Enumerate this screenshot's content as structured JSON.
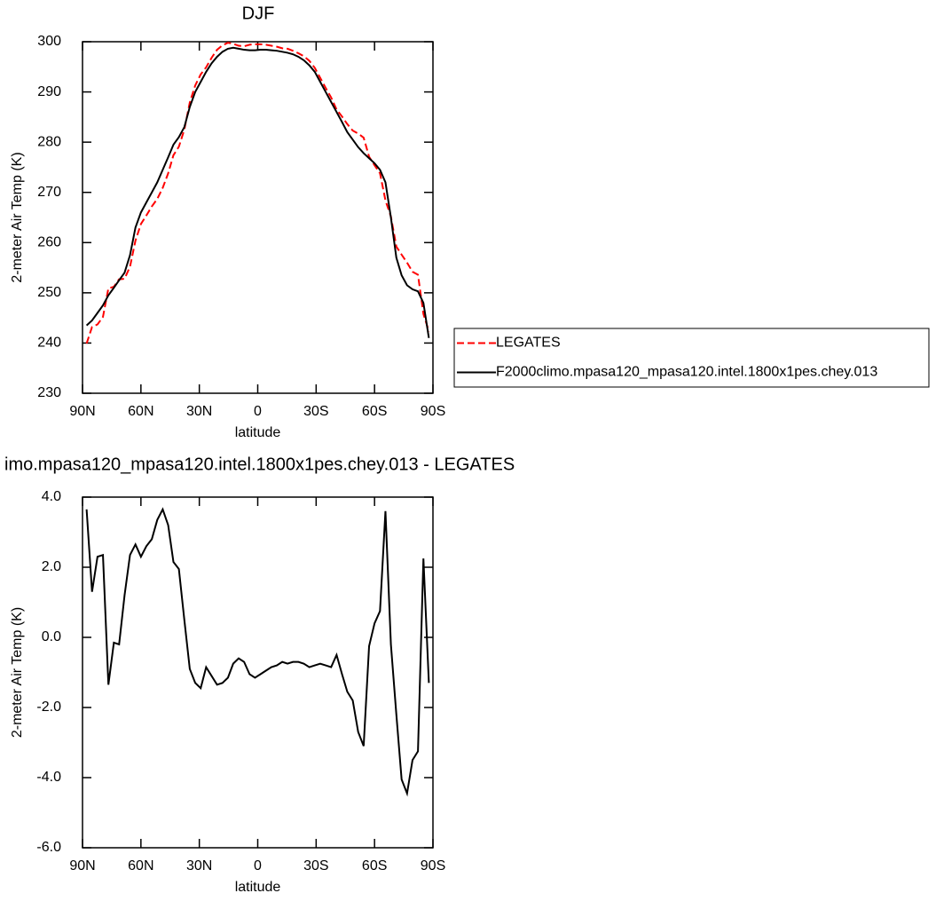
{
  "chart_data": [
    {
      "type": "line",
      "title": "DJF",
      "xlabel": "latitude",
      "ylabel": "2-meter Air Temp (K)",
      "x": [
        87.9,
        85.1,
        82.3,
        79.5,
        76.7,
        73.9,
        71.2,
        68.4,
        65.6,
        62.8,
        60.0,
        57.2,
        54.4,
        51.6,
        48.8,
        46.0,
        43.3,
        40.5,
        37.7,
        34.9,
        32.1,
        29.3,
        26.5,
        23.7,
        20.9,
        18.1,
        15.3,
        12.6,
        9.8,
        7.0,
        4.2,
        1.4,
        -1.4,
        -4.2,
        -7.0,
        -9.8,
        -12.6,
        -15.3,
        -18.1,
        -20.9,
        -23.7,
        -26.5,
        -29.3,
        -32.1,
        -34.9,
        -37.7,
        -40.5,
        -43.3,
        -46.0,
        -48.8,
        -51.6,
        -54.4,
        -57.2,
        -60.0,
        -62.8,
        -65.6,
        -68.4,
        -71.2,
        -73.9,
        -76.7,
        -79.5,
        -82.3,
        -85.1,
        -87.9
      ],
      "series": [
        {
          "name": "LEGATES",
          "color": "#ff0000",
          "line_style": "dashed",
          "values": [
            239.9,
            243.2,
            243.7,
            245.2,
            250.9,
            251.2,
            252.7,
            252.8,
            255.2,
            260.4,
            263.7,
            265.4,
            267.2,
            268.7,
            270.9,
            273.8,
            277.4,
            279.1,
            282.5,
            287.9,
            291.3,
            293.5,
            294.9,
            296.8,
            298.4,
            299.3,
            299.8,
            299.6,
            299.2,
            299.1,
            299.4,
            299.5,
            299.5,
            299.4,
            299.2,
            299.0,
            298.7,
            298.6,
            298.2,
            297.7,
            297.1,
            296.2,
            294.8,
            292.8,
            290.8,
            288.9,
            286.5,
            285.1,
            283.6,
            282.3,
            281.7,
            280.9,
            277.1,
            275.4,
            273.8,
            268.4,
            265.2,
            259.2,
            257.6,
            256.0,
            254.2,
            253.6,
            245.8,
            242.3
          ]
        },
        {
          "name": "F2000climo.mpasa120_mpasa120.intel.1800x1pes.chey.013",
          "color": "#000000",
          "line_style": "solid",
          "values": [
            243.5,
            244.5,
            246,
            247.5,
            249.5,
            251,
            252.5,
            254,
            257.5,
            263,
            266,
            268,
            270,
            272,
            274.5,
            277,
            279.5,
            281,
            283,
            287,
            290,
            292,
            294,
            295.7,
            297,
            298,
            298.6,
            298.8,
            298.6,
            298.4,
            298.3,
            298.3,
            298.4,
            298.4,
            298.3,
            298.2,
            298,
            297.8,
            297.5,
            297,
            296.3,
            295.3,
            294,
            292,
            290,
            288,
            286,
            284,
            282,
            280.5,
            279,
            277.8,
            276.8,
            275.8,
            274.5,
            272,
            265,
            257,
            253.5,
            251.5,
            250.7,
            250.3,
            248,
            241
          ]
        }
      ],
      "xlim": [
        90,
        -90
      ],
      "xticks": [
        {
          "value": 90,
          "label": "90N"
        },
        {
          "value": 60,
          "label": "60N"
        },
        {
          "value": 30,
          "label": "30N"
        },
        0,
        {
          "value": -30,
          "label": "30S"
        },
        {
          "value": -60,
          "label": "60S"
        },
        {
          "value": -90,
          "label": "90S"
        }
      ],
      "ylim": [
        230,
        300
      ],
      "yticks": [
        230,
        240,
        250,
        260,
        270,
        280,
        290,
        300
      ],
      "legend": "right"
    },
    {
      "type": "line",
      "title": "imo.mpasa120_mpasa120.intel.1800x1pes.chey.013 - LEGATES",
      "xlabel": "latitude",
      "ylabel": "2-meter Air Temp (K)",
      "x": [
        87.9,
        85.1,
        82.3,
        79.5,
        76.7,
        73.9,
        71.2,
        68.4,
        65.6,
        62.8,
        60.0,
        57.2,
        54.4,
        51.6,
        48.8,
        46.0,
        43.3,
        40.5,
        37.7,
        34.9,
        32.1,
        29.3,
        26.5,
        23.7,
        20.9,
        18.1,
        15.3,
        12.6,
        9.8,
        7.0,
        4.2,
        1.4,
        -1.4,
        -4.2,
        -7.0,
        -9.8,
        -12.6,
        -15.3,
        -18.1,
        -20.9,
        -23.7,
        -26.5,
        -29.3,
        -32.1,
        -34.9,
        -37.7,
        -40.5,
        -43.3,
        -46.0,
        -48.8,
        -51.6,
        -54.4,
        -57.2,
        -60.0,
        -62.8,
        -65.6,
        -68.4,
        -71.2,
        -73.9,
        -76.7,
        -79.5,
        -82.3,
        -85.1,
        -87.9
      ],
      "series": [
        {
          "color": "#000000",
          "line_style": "solid",
          "values": [
            3.65,
            1.3,
            2.3,
            2.35,
            -1.35,
            -0.15,
            -0.2,
            1.2,
            2.35,
            2.65,
            2.3,
            2.6,
            2.8,
            3.35,
            3.65,
            3.2,
            2.15,
            1.95,
            0.5,
            -0.9,
            -1.3,
            -1.45,
            -0.85,
            -1.1,
            -1.35,
            -1.3,
            -1.15,
            -0.75,
            -0.6,
            -0.7,
            -1.05,
            -1.15,
            -1.05,
            -0.95,
            -0.85,
            -0.8,
            -0.7,
            -0.75,
            -0.7,
            -0.7,
            -0.75,
            -0.85,
            -0.8,
            -0.75,
            -0.8,
            -0.85,
            -0.5,
            -1.05,
            -1.55,
            -1.8,
            -2.7,
            -3.1,
            -0.25,
            0.4,
            0.75,
            3.6,
            -0.2,
            -2.2,
            -4.05,
            -4.45,
            -3.5,
            -3.25,
            2.25,
            -1.3
          ]
        }
      ],
      "xlim": [
        90,
        -90
      ],
      "xticks": [
        {
          "value": 90,
          "label": "90N"
        },
        {
          "value": 60,
          "label": "60N"
        },
        {
          "value": 30,
          "label": "30N"
        },
        0,
        {
          "value": -30,
          "label": "30S"
        },
        {
          "value": -60,
          "label": "60S"
        },
        {
          "value": -90,
          "label": "90S"
        }
      ],
      "ylim": [
        -6,
        4
      ],
      "yticks": [
        {
          "value": -6,
          "label": "-6.0"
        },
        {
          "value": -4,
          "label": "-4.0"
        },
        {
          "value": -2,
          "label": "-2.0"
        },
        {
          "value": 0,
          "label": "0.0"
        },
        {
          "value": 2,
          "label": "2.0"
        },
        {
          "value": 4,
          "label": "4.0"
        }
      ]
    }
  ]
}
